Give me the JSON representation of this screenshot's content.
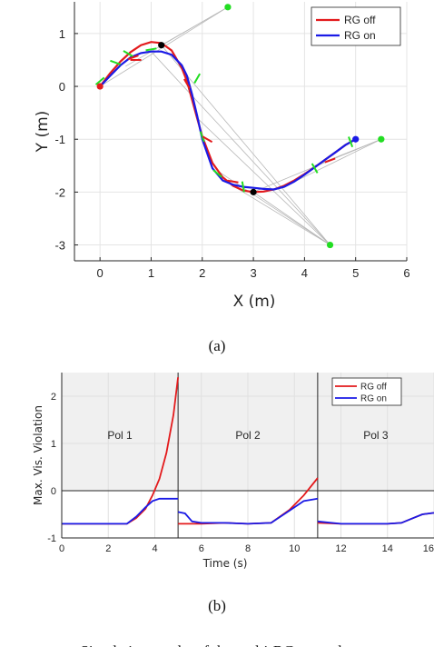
{
  "chart_data": [
    {
      "type": "line",
      "panel": "(a)",
      "xlabel": "X (m)",
      "ylabel": "Y (m)",
      "xlim": [
        -0.5,
        6
      ],
      "ylim": [
        -3.3,
        1.6
      ],
      "xticks": [
        "0",
        "1",
        "2",
        "3",
        "4",
        "5",
        "6"
      ],
      "yticks": [
        "1",
        "0",
        "-1",
        "-2",
        "-3"
      ],
      "grid": true,
      "legend_placement": "top-right",
      "series": [
        {
          "name": "RG off",
          "color": "#e31a1c",
          "x": [
            0,
            0.2,
            0.4,
            0.6,
            0.8,
            1.0,
            1.2,
            1.4,
            1.6,
            1.7,
            1.8,
            1.9,
            2.0,
            2.2,
            2.4,
            2.6,
            2.8,
            3.0,
            3.2,
            3.4,
            3.6,
            3.8,
            4.0,
            4.2,
            4.4,
            4.6,
            4.8,
            5.0
          ],
          "y": [
            0,
            0.25,
            0.47,
            0.65,
            0.78,
            0.84,
            0.82,
            0.68,
            0.35,
            0.1,
            -0.25,
            -0.6,
            -0.95,
            -1.45,
            -1.72,
            -1.88,
            -1.97,
            -2.0,
            -1.99,
            -1.95,
            -1.88,
            -1.78,
            -1.66,
            -1.53,
            -1.39,
            -1.25,
            -1.11,
            -1.0
          ]
        },
        {
          "name": "RG on",
          "color": "#1a1ae6",
          "x": [
            0,
            0.2,
            0.4,
            0.6,
            0.8,
            1.0,
            1.2,
            1.4,
            1.6,
            1.7,
            1.8,
            1.9,
            2.0,
            2.2,
            2.4,
            2.6,
            2.8,
            3.0,
            3.2,
            3.4,
            3.6,
            3.8,
            4.0,
            4.2,
            4.4,
            4.6,
            4.8,
            5.0
          ],
          "y": [
            0,
            0.2,
            0.4,
            0.55,
            0.63,
            0.66,
            0.66,
            0.6,
            0.4,
            0.2,
            -0.15,
            -0.55,
            -1.0,
            -1.55,
            -1.78,
            -1.86,
            -1.9,
            -1.92,
            -1.94,
            -1.95,
            -1.9,
            -1.8,
            -1.67,
            -1.53,
            -1.39,
            -1.25,
            -1.11,
            -1.0
          ]
        }
      ],
      "points": [
        {
          "x": 2.5,
          "y": 1.5,
          "color": "#22dd22"
        },
        {
          "x": 5.5,
          "y": -1.0,
          "color": "#22dd22"
        },
        {
          "x": 4.5,
          "y": -3.0,
          "color": "#22dd22"
        },
        {
          "x": 0,
          "y": 0,
          "color": "#e31a1c"
        },
        {
          "x": 5.0,
          "y": -1.0,
          "color": "#1a1ae6"
        },
        {
          "x": 1.2,
          "y": 0.78,
          "color": "#000000"
        },
        {
          "x": 3.0,
          "y": -2.0,
          "color": "#000000"
        }
      ]
    },
    {
      "type": "line",
      "panel": "(b)",
      "xlabel": "Time (s)",
      "ylabel": "Max. Vis. Violation",
      "xlim": [
        0,
        16
      ],
      "ylim": [
        -1,
        2.5
      ],
      "xticks": [
        "0",
        "2",
        "4",
        "6",
        "8",
        "10",
        "12",
        "14",
        "16"
      ],
      "yticks": [
        "2",
        "1",
        "0",
        "-1"
      ],
      "grid": true,
      "legend_placement": "top-right",
      "segment_labels": [
        "Pol 1",
        "Pol 2",
        "Pol 3"
      ],
      "switch_times": [
        5,
        11
      ],
      "series": [
        {
          "name": "RG off",
          "color": "#e31a1c",
          "x": [
            0,
            2.8,
            3.2,
            3.6,
            3.9,
            4.2,
            4.5,
            4.8,
            5.0,
            5.0,
            5.5,
            6.0,
            7.0,
            8.0,
            9.0,
            9.8,
            10.4,
            11.0,
            11.0,
            12.0,
            13.0,
            14.0,
            14.6,
            15.0,
            15.5,
            16
          ],
          "y": [
            -0.7,
            -0.7,
            -0.58,
            -0.38,
            -0.1,
            0.25,
            0.8,
            1.6,
            2.4,
            -0.7,
            -0.7,
            -0.7,
            -0.68,
            -0.7,
            -0.68,
            -0.4,
            -0.1,
            0.27,
            -0.68,
            -0.7,
            -0.7,
            -0.7,
            -0.68,
            -0.6,
            -0.5,
            -0.47
          ]
        },
        {
          "name": "RG on",
          "color": "#1a1ae6",
          "x": [
            0,
            2.8,
            3.2,
            3.6,
            3.9,
            4.2,
            4.5,
            5.0,
            5.0,
            5.3,
            5.6,
            6.0,
            7.0,
            8.0,
            9.0,
            9.8,
            10.4,
            11.0,
            11.0,
            12.0,
            13.0,
            14.0,
            14.6,
            15.0,
            15.5,
            16
          ],
          "y": [
            -0.7,
            -0.7,
            -0.55,
            -0.35,
            -0.22,
            -0.17,
            -0.17,
            -0.17,
            -0.45,
            -0.48,
            -0.65,
            -0.68,
            -0.68,
            -0.7,
            -0.68,
            -0.42,
            -0.22,
            -0.17,
            -0.65,
            -0.7,
            -0.7,
            -0.7,
            -0.68,
            -0.6,
            -0.5,
            -0.47
          ]
        }
      ]
    }
  ],
  "captions": {
    "a": "(a)",
    "b": "(b)"
  },
  "footer_text": "Simulation results of the multi-RG control..."
}
